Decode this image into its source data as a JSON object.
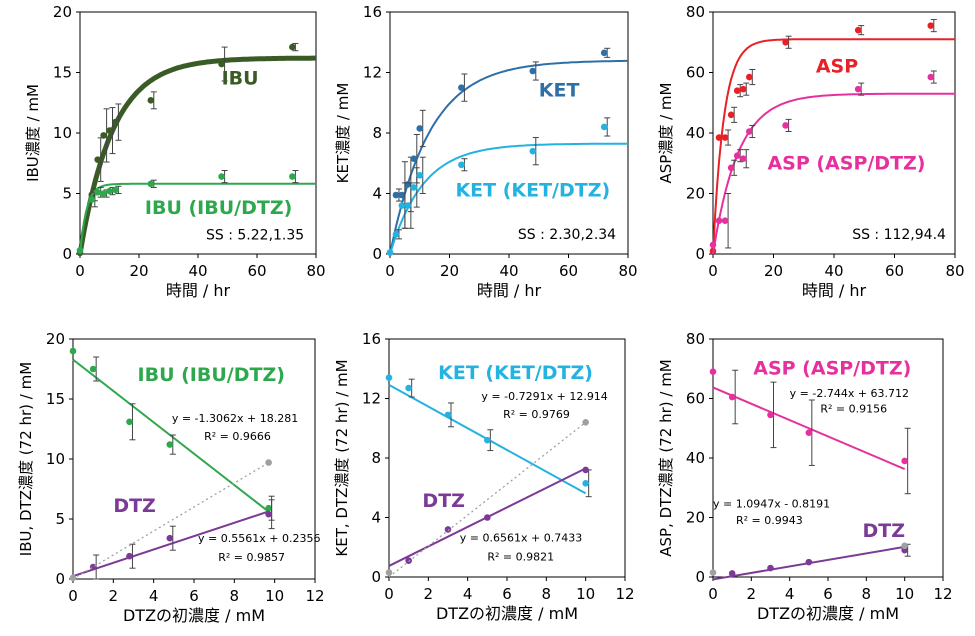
{
  "chart_data": [
    {
      "id": "p1",
      "type": "line",
      "title": "",
      "xlabel": "時間  / hr",
      "ylabel": "IBU濃度 / mM",
      "xlim": [
        0,
        80
      ],
      "ylim": [
        0,
        20
      ],
      "xticks": [
        "0",
        "20",
        "40",
        "60",
        "80"
      ],
      "yticks": [
        "0",
        "5",
        "10",
        "15",
        "20"
      ],
      "series": [
        {
          "name": "IBU",
          "color": "#3a5b26",
          "x": [
            0,
            4,
            6,
            8,
            10,
            12,
            24,
            48,
            72
          ],
          "y": [
            0.1,
            4.9,
            7.8,
            9.8,
            10.2,
            10.9,
            12.7,
            15.7,
            17.1
          ],
          "err": [
            0,
            0.5,
            1.8,
            2.2,
            1.9,
            1.5,
            0.7,
            1.4,
            0.3
          ],
          "fit": {
            "kind": "exp",
            "a": 16.2,
            "k": 0.09,
            "width": 5
          }
        },
        {
          "name": "IBU (IBU/DTZ)",
          "color": "#2ea84c",
          "x": [
            0,
            4,
            6,
            8,
            10,
            12,
            24,
            48,
            72
          ],
          "y": [
            0.3,
            4.5,
            5.1,
            5.0,
            5.2,
            5.3,
            5.8,
            6.4,
            6.4
          ],
          "err": [
            0,
            0.6,
            0.4,
            0.3,
            0.3,
            0.3,
            0.3,
            0.5,
            0.5
          ],
          "fit": {
            "kind": "exp",
            "a": 5.8,
            "k": 0.45,
            "width": 2
          }
        }
      ],
      "labels": [
        {
          "text": "IBU",
          "x": 48,
          "y": 14,
          "color": "#3a5b26",
          "size": 19,
          "anchor": "start"
        },
        {
          "text": "IBU (IBU/DTZ)",
          "x": 22,
          "y": 3.3,
          "color": "#2ea84c",
          "size": 19,
          "anchor": "start"
        },
        {
          "text": "SS : 5.22,1.35",
          "x": 76,
          "y": 1.2,
          "color": "#000000",
          "size": 14,
          "anchor": "end"
        }
      ]
    },
    {
      "id": "p2",
      "type": "line",
      "xlabel": "時間  / hr",
      "ylabel": "KET濃度 / mM",
      "xlim": [
        0,
        80
      ],
      "ylim": [
        0,
        16
      ],
      "xticks": [
        "0",
        "20",
        "40",
        "60",
        "80"
      ],
      "yticks": [
        "0",
        "4",
        "8",
        "12",
        "16"
      ],
      "series": [
        {
          "name": "KET",
          "color": "#2e6fa8",
          "x": [
            0,
            2,
            4,
            6,
            8,
            10,
            24,
            48,
            72
          ],
          "y": [
            0.1,
            3.9,
            3.9,
            4.6,
            6.3,
            8.3,
            11.0,
            12.1,
            13.3
          ],
          "err": [
            0,
            0.4,
            2.2,
            1.8,
            1.6,
            1.2,
            0.9,
            0.6,
            0.3
          ],
          "fit": {
            "kind": "exp",
            "a": 12.8,
            "k": 0.075,
            "width": 2
          }
        },
        {
          "name": "KET (KET/DTZ)",
          "color": "#24b2e0",
          "x": [
            0,
            2,
            4,
            6,
            8,
            10,
            24,
            48,
            72
          ],
          "y": [
            0.1,
            1.3,
            3.2,
            3.2,
            4.4,
            5.2,
            5.9,
            6.8,
            8.4
          ],
          "err": [
            0,
            0.3,
            1.5,
            1.5,
            1.3,
            1.2,
            0.4,
            0.9,
            0.6
          ],
          "fit": {
            "kind": "exp",
            "a": 7.3,
            "k": 0.09,
            "width": 2
          }
        }
      ],
      "labels": [
        {
          "text": "KET",
          "x": 50,
          "y": 10.4,
          "color": "#2e6fa8",
          "size": 19,
          "anchor": "start"
        },
        {
          "text": "KET (KET/DTZ)",
          "x": 22,
          "y": 3.8,
          "color": "#24b2e0",
          "size": 19,
          "anchor": "start"
        },
        {
          "text": "SS : 2.30,2.34",
          "x": 76,
          "y": 1.0,
          "color": "#000000",
          "size": 14,
          "anchor": "end"
        }
      ]
    },
    {
      "id": "p3",
      "type": "line",
      "xlabel": "時間  / hr",
      "ylabel": "ASP濃度 / mM",
      "xlim": [
        0,
        80
      ],
      "ylim": [
        0,
        80
      ],
      "xticks": [
        "0",
        "20",
        "40",
        "60",
        "80"
      ],
      "yticks": [
        "0",
        "20",
        "40",
        "60",
        "80"
      ],
      "series": [
        {
          "name": "ASP",
          "color": "#e82027",
          "x": [
            0,
            2,
            4,
            6,
            8,
            10,
            12,
            24,
            48,
            72
          ],
          "y": [
            1,
            38.5,
            38.5,
            46,
            54,
            54.5,
            58.5,
            70,
            74,
            75.5
          ],
          "err": [
            0,
            0,
            2.5,
            2.5,
            2,
            2,
            2.5,
            2,
            1.5,
            2
          ],
          "fit": {
            "kind": "exp",
            "a": 71,
            "k": 0.28,
            "width": 2
          }
        },
        {
          "name": "ASP (ASP/DTZ)",
          "color": "#e6309e",
          "x": [
            0,
            2,
            4,
            6,
            8,
            10,
            12,
            24,
            48,
            72
          ],
          "y": [
            3,
            11,
            11,
            28.5,
            32.5,
            31.5,
            40.5,
            42.5,
            54.5,
            58.5
          ],
          "err": [
            0,
            0,
            9,
            2.5,
            2,
            3,
            2,
            2,
            2,
            2
          ],
          "fit": {
            "kind": "exp",
            "a": 53,
            "k": 0.12,
            "width": 2
          }
        }
      ],
      "labels": [
        {
          "text": "ASP",
          "x": 34,
          "y": 60,
          "color": "#e82027",
          "size": 19,
          "anchor": "start"
        },
        {
          "text": "ASP (ASP/DTZ)",
          "x": 18,
          "y": 28,
          "color": "#e6309e",
          "size": 19,
          "anchor": "start"
        },
        {
          "text": "SS : 112,94.4",
          "x": 77,
          "y": 5,
          "color": "#000000",
          "size": 14,
          "anchor": "end"
        }
      ]
    },
    {
      "id": "p4",
      "type": "scatter",
      "xlabel": "DTZの初濃度 / mM",
      "ylabel": "IBU, DTZ濃度 (72 hr) / mM",
      "xlim": [
        0,
        12
      ],
      "ylim": [
        0,
        20
      ],
      "xticks": [
        "0",
        "2",
        "4",
        "6",
        "8",
        "10",
        "12"
      ],
      "yticks": [
        "0",
        "5",
        "10",
        "15",
        "20"
      ],
      "series": [
        {
          "name": "IBU (IBU/DTZ)",
          "color": "#2ea84c",
          "x": [
            0,
            1,
            2.8,
            4.8,
            9.7
          ],
          "y": [
            19,
            17.5,
            13.1,
            11.2,
            5.9
          ],
          "err": [
            0,
            1,
            1.5,
            0.8,
            1.0
          ],
          "fit": {
            "kind": "linear",
            "slope": -1.3062,
            "intercept": 18.281,
            "x0": 0,
            "x1": 9.7
          }
        },
        {
          "name": "DTZ",
          "color": "#7b3a96",
          "x": [
            1,
            2.8,
            4.8,
            9.7
          ],
          "y": [
            1.0,
            1.9,
            3.4,
            5.4
          ],
          "err": [
            1,
            1,
            1,
            1.2
          ],
          "fit": {
            "kind": "linear",
            "slope": 0.5561,
            "intercept": 0.2356,
            "x0": 0,
            "x1": 9.7
          }
        },
        {
          "name": "ref",
          "color": "#a0a0a0",
          "x": [
            0,
            9.7
          ],
          "y": [
            0.1,
            9.7
          ],
          "err": [
            0,
            0
          ],
          "fit": {
            "kind": "dotted",
            "x0": 0,
            "y0": 0,
            "x1": 9.7,
            "y1": 9.7
          }
        }
      ],
      "labels": [
        {
          "text": "IBU (IBU/DTZ)",
          "x": 3.2,
          "y": 16.5,
          "color": "#2ea84c",
          "size": 19,
          "anchor": "start"
        },
        {
          "text": "DTZ",
          "x": 2.0,
          "y": 5.6,
          "color": "#7b3a96",
          "size": 19,
          "anchor": "start"
        },
        {
          "text": "y = -1.3062x + 18.281",
          "x": 4.9,
          "y": 13.1,
          "color": "#000000",
          "size": 11,
          "anchor": "start"
        },
        {
          "text": "R² = 0.9666",
          "x": 6.5,
          "y": 11.6,
          "color": "#000000",
          "size": 11,
          "anchor": "start"
        },
        {
          "text": "y = 0.5561x + 0.2356",
          "x": 6.2,
          "y": 3.1,
          "color": "#000000",
          "size": 11,
          "anchor": "start"
        },
        {
          "text": "R² = 0.9857",
          "x": 7.2,
          "y": 1.5,
          "color": "#000000",
          "size": 11,
          "anchor": "start"
        }
      ]
    },
    {
      "id": "p5",
      "type": "scatter",
      "xlabel": "DTZの初濃度 / mM",
      "ylabel": "KET, DTZ濃度 (72 hr) / mM",
      "xlim": [
        0,
        12
      ],
      "ylim": [
        0,
        16
      ],
      "xticks": [
        "0",
        "2",
        "4",
        "6",
        "8",
        "10",
        "12"
      ],
      "yticks": [
        "0",
        "4",
        "8",
        "12",
        "16"
      ],
      "series": [
        {
          "name": "KET (KET/DTZ)",
          "color": "#24b2e0",
          "x": [
            0,
            1,
            3,
            5,
            10
          ],
          "y": [
            13.4,
            12.7,
            10.9,
            9.2,
            6.3
          ],
          "err": [
            0,
            0.6,
            0.8,
            0.7,
            0.9
          ],
          "fit": {
            "kind": "linear",
            "slope": -0.7291,
            "intercept": 12.914,
            "x0": 0,
            "x1": 10
          }
        },
        {
          "name": "DTZ",
          "color": "#7b3a96",
          "x": [
            1,
            3,
            5,
            10
          ],
          "y": [
            1.1,
            3.2,
            4.0,
            7.2
          ],
          "err": [
            0,
            0,
            0,
            0
          ],
          "fit": {
            "kind": "linear",
            "slope": 0.6561,
            "intercept": 0.7433,
            "x0": 0,
            "x1": 10
          }
        },
        {
          "name": "ref",
          "color": "#a0a0a0",
          "x": [
            0,
            10
          ],
          "y": [
            0.3,
            10.4
          ],
          "err": [
            0,
            0
          ],
          "fit": {
            "kind": "dotted",
            "x0": 0,
            "y0": 0,
            "x1": 10,
            "y1": 10.4
          }
        }
      ],
      "labels": [
        {
          "text": "KET (KET/DTZ)",
          "x": 2.5,
          "y": 13.3,
          "color": "#24b2e0",
          "size": 19,
          "anchor": "start"
        },
        {
          "text": "DTZ",
          "x": 1.7,
          "y": 4.7,
          "color": "#7b3a96",
          "size": 19,
          "anchor": "start"
        },
        {
          "text": "y = -0.7291x + 12.914",
          "x": 4.7,
          "y": 11.9,
          "color": "#000000",
          "size": 11,
          "anchor": "start"
        },
        {
          "text": "R² = 0.9769",
          "x": 5.8,
          "y": 10.7,
          "color": "#000000",
          "size": 11,
          "anchor": "start"
        },
        {
          "text": "y = 0.6561x + 0.7433",
          "x": 3.6,
          "y": 2.4,
          "color": "#000000",
          "size": 11,
          "anchor": "start"
        },
        {
          "text": "R² = 0.9821",
          "x": 5.0,
          "y": 1.1,
          "color": "#000000",
          "size": 11,
          "anchor": "start"
        }
      ]
    },
    {
      "id": "p6",
      "type": "scatter",
      "xlabel": "DTZの初濃度 / mM",
      "ylabel": "ASP, DTZ濃度 (72 hr) / mM",
      "xlim": [
        0,
        12
      ],
      "ylim": [
        0,
        80
      ],
      "xticks": [
        "0",
        "2",
        "4",
        "6",
        "8",
        "10",
        "12"
      ],
      "yticks": [
        "0",
        "20",
        "40",
        "60",
        "80"
      ],
      "series": [
        {
          "name": "ASP (ASP/DTZ)",
          "color": "#e6309e",
          "x": [
            0,
            1,
            3,
            5,
            10
          ],
          "y": [
            69,
            60.5,
            54.5,
            48.5,
            39
          ],
          "err": [
            0,
            9,
            11,
            11,
            11
          ],
          "fit": {
            "kind": "linear",
            "slope": -2.744,
            "intercept": 63.712,
            "x0": 0,
            "x1": 10
          }
        },
        {
          "name": "DTZ",
          "color": "#7b3a96",
          "x": [
            1,
            3,
            5,
            10
          ],
          "y": [
            1.2,
            3.0,
            5.0,
            9.0
          ],
          "err": [
            0,
            0,
            0,
            2
          ],
          "fit": {
            "kind": "linear",
            "slope": 1.0947,
            "intercept": -0.8191,
            "x0": 0,
            "x1": 10
          }
        },
        {
          "name": "ref",
          "color": "#a0a0a0",
          "x": [
            0,
            10
          ],
          "y": [
            1.5,
            10.5
          ],
          "err": [
            0,
            0
          ],
          "fit": {
            "kind": "none"
          }
        }
      ],
      "labels": [
        {
          "text": "ASP (ASP/DTZ)",
          "x": 2.1,
          "y": 68,
          "color": "#e6309e",
          "size": 19,
          "anchor": "start"
        },
        {
          "text": "DTZ",
          "x": 7.8,
          "y": 13.5,
          "color": "#7b3a96",
          "size": 19,
          "anchor": "start"
        },
        {
          "text": "y = -2.744x + 63.712",
          "x": 4.0,
          "y": 60.5,
          "color": "#000000",
          "size": 11,
          "anchor": "start"
        },
        {
          "text": "R² = 0.9156",
          "x": 5.6,
          "y": 55.3,
          "color": "#000000",
          "size": 11,
          "anchor": "start"
        },
        {
          "text": "y = 1.0947x - 0.8191",
          "x": 0,
          "y": 23.3,
          "color": "#000000",
          "size": 11,
          "anchor": "start"
        },
        {
          "text": "R² = 0.9943",
          "x": 1.2,
          "y": 17.8,
          "color": "#000000",
          "size": 11,
          "anchor": "start"
        }
      ]
    }
  ]
}
